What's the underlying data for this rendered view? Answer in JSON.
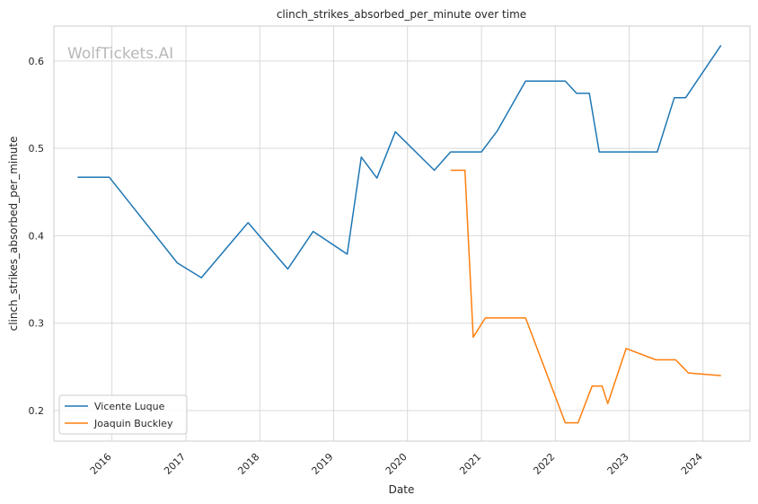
{
  "chart_data": {
    "type": "line",
    "title": "clinch_strikes_absorbed_per_minute over time",
    "xlabel": "Date",
    "ylabel": "clinch_strikes_absorbed_per_minute",
    "watermark": "WolfTickets.AI",
    "xlim": [
      "2015-03-20",
      "2024-08-20"
    ],
    "ylim": [
      0.165,
      0.64
    ],
    "x_ticks": [
      "2016",
      "2017",
      "2018",
      "2019",
      "2020",
      "2021",
      "2022",
      "2023",
      "2024"
    ],
    "y_ticks": [
      "0.2",
      "0.3",
      "0.4",
      "0.5",
      "0.6"
    ],
    "grid": true,
    "legend_position": "lower-left",
    "series": [
      {
        "name": "Vicente Luque",
        "color": "#1f77b4",
        "points": [
          {
            "x": "2015-07-15",
            "y": 0.467
          },
          {
            "x": "2015-12-19",
            "y": 0.467
          },
          {
            "x": "2016-11-19",
            "y": 0.369
          },
          {
            "x": "2017-03-18",
            "y": 0.352
          },
          {
            "x": "2017-11-04",
            "y": 0.415
          },
          {
            "x": "2018-05-19",
            "y": 0.362
          },
          {
            "x": "2018-09-22",
            "y": 0.405
          },
          {
            "x": "2019-03-09",
            "y": 0.379
          },
          {
            "x": "2019-05-18",
            "y": 0.49
          },
          {
            "x": "2019-08-03",
            "y": 0.466
          },
          {
            "x": "2019-11-02",
            "y": 0.519
          },
          {
            "x": "2020-05-13",
            "y": 0.475
          },
          {
            "x": "2020-08-01",
            "y": 0.496
          },
          {
            "x": "2021-01-01",
            "y": 0.496
          },
          {
            "x": "2021-03-20",
            "y": 0.52
          },
          {
            "x": "2021-08-07",
            "y": 0.577
          },
          {
            "x": "2022-02-19",
            "y": 0.577
          },
          {
            "x": "2022-04-16",
            "y": 0.563
          },
          {
            "x": "2022-06-18",
            "y": 0.563
          },
          {
            "x": "2022-08-06",
            "y": 0.496
          },
          {
            "x": "2023-05-20",
            "y": 0.496
          },
          {
            "x": "2023-08-12",
            "y": 0.558
          },
          {
            "x": "2023-10-07",
            "y": 0.558
          },
          {
            "x": "2024-03-30",
            "y": 0.618
          }
        ]
      },
      {
        "name": "Joaquin Buckley",
        "color": "#ff7f0e",
        "points": [
          {
            "x": "2020-08-01",
            "y": 0.475
          },
          {
            "x": "2020-10-11",
            "y": 0.475
          },
          {
            "x": "2020-11-21",
            "y": 0.284
          },
          {
            "x": "2021-01-20",
            "y": 0.306
          },
          {
            "x": "2021-08-07",
            "y": 0.306
          },
          {
            "x": "2022-02-19",
            "y": 0.186
          },
          {
            "x": "2022-04-23",
            "y": 0.186
          },
          {
            "x": "2022-07-02",
            "y": 0.228
          },
          {
            "x": "2022-08-20",
            "y": 0.228
          },
          {
            "x": "2022-09-17",
            "y": 0.208
          },
          {
            "x": "2022-12-17",
            "y": 0.271
          },
          {
            "x": "2023-05-13",
            "y": 0.258
          },
          {
            "x": "2023-08-19",
            "y": 0.258
          },
          {
            "x": "2023-10-21",
            "y": 0.243
          },
          {
            "x": "2024-03-30",
            "y": 0.24
          }
        ]
      }
    ]
  }
}
